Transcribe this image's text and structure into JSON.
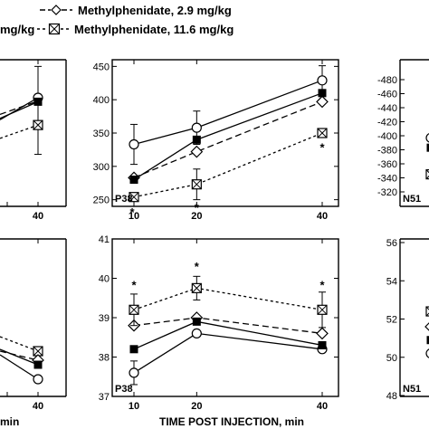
{
  "legend": {
    "entries": [
      {
        "label": "Methylphenidate, 2.9 mg/kg",
        "marker": "open-diamond",
        "line": "long-dash"
      },
      {
        "label": "Methylphenidate, 11.6 mg/kg",
        "marker": "crossed-square",
        "line": "short-dash"
      }
    ],
    "partial_text": "mg/kg"
  },
  "x_label": "TIME POST INJECTION, min",
  "x_label_partial": "min",
  "chart_data": [
    {
      "type": "line",
      "panel": "top-left (cropped)",
      "x_ticks": [
        "40"
      ],
      "series": [
        {
          "marker": "open-circle",
          "points": [
            [
              40,
              403
            ]
          ]
        },
        {
          "marker": "filled-square",
          "points": [
            [
              40,
              397
            ]
          ]
        },
        {
          "marker": "crossed-square",
          "points": [
            [
              40,
              362
            ]
          ]
        }
      ]
    },
    {
      "type": "line",
      "panel_label": "P38",
      "x": [
        10,
        20,
        40
      ],
      "x_ticks": [
        "10",
        "20",
        "40"
      ],
      "y_ticks": [
        "250",
        "300",
        "350",
        "400",
        "450"
      ],
      "ylim": [
        240,
        460
      ],
      "grid": false,
      "series": [
        {
          "marker": "open-circle",
          "line": "solid",
          "values": [
            333,
            358,
            429
          ],
          "err": [
            30,
            25,
            22
          ]
        },
        {
          "name": "Methylphenidate, 2.9 mg/kg",
          "marker": "open-diamond",
          "line": "long-dash",
          "values": [
            283,
            322,
            397
          ],
          "err": [
            0,
            0,
            0
          ]
        },
        {
          "marker": "filled-square",
          "line": "solid",
          "values": [
            280,
            340,
            410
          ],
          "err": [
            0,
            0,
            0
          ]
        },
        {
          "name": "Methylphenidate, 11.6 mg/kg",
          "marker": "crossed-square",
          "line": "short-dash",
          "values": [
            254,
            273,
            350
          ],
          "err": [
            0,
            23,
            0
          ]
        }
      ],
      "annotations": [
        "*",
        "*",
        "*"
      ]
    },
    {
      "type": "line",
      "panel": "top-right (cropped)",
      "panel_label": "N51",
      "y_ticks": [
        "-320",
        "-340",
        "-360",
        "-380",
        "-400",
        "-420",
        "-440",
        "-460",
        "-480"
      ],
      "ylim": [
        -310,
        -485
      ]
    },
    {
      "type": "line",
      "panel": "bottom-left (cropped)",
      "x_ticks": [
        "40"
      ]
    },
    {
      "type": "line",
      "panel_label": "P38",
      "x": [
        10,
        20,
        40
      ],
      "x_ticks": [
        "10",
        "20",
        "40"
      ],
      "y_ticks": [
        "37",
        "38",
        "39",
        "40",
        "41"
      ],
      "ylim": [
        37,
        41
      ],
      "grid": false,
      "series": [
        {
          "marker": "open-circle",
          "line": "solid",
          "values": [
            37.6,
            38.6,
            38.2
          ],
          "err": [
            0.3,
            0,
            0
          ]
        },
        {
          "name": "Methylphenidate, 2.9 mg/kg",
          "marker": "open-diamond",
          "line": "long-dash",
          "values": [
            38.8,
            39.0,
            38.6
          ],
          "err": [
            0,
            0,
            0
          ]
        },
        {
          "marker": "filled-square",
          "line": "solid",
          "values": [
            38.2,
            38.9,
            38.3
          ],
          "err": [
            0,
            0,
            0
          ]
        },
        {
          "name": "Methylphenidate, 11.6 mg/kg",
          "marker": "crossed-square",
          "line": "short-dash",
          "values": [
            39.2,
            39.75,
            39.2
          ],
          "err": [
            0.4,
            0.3,
            0.45
          ]
        }
      ],
      "annotations": [
        "*",
        "*",
        "*"
      ]
    },
    {
      "type": "line",
      "panel": "bottom-right (cropped)",
      "panel_label": "N51",
      "y_ticks": [
        "48",
        "50",
        "52",
        "54",
        "56"
      ],
      "ylim": [
        48,
        56
      ]
    }
  ]
}
